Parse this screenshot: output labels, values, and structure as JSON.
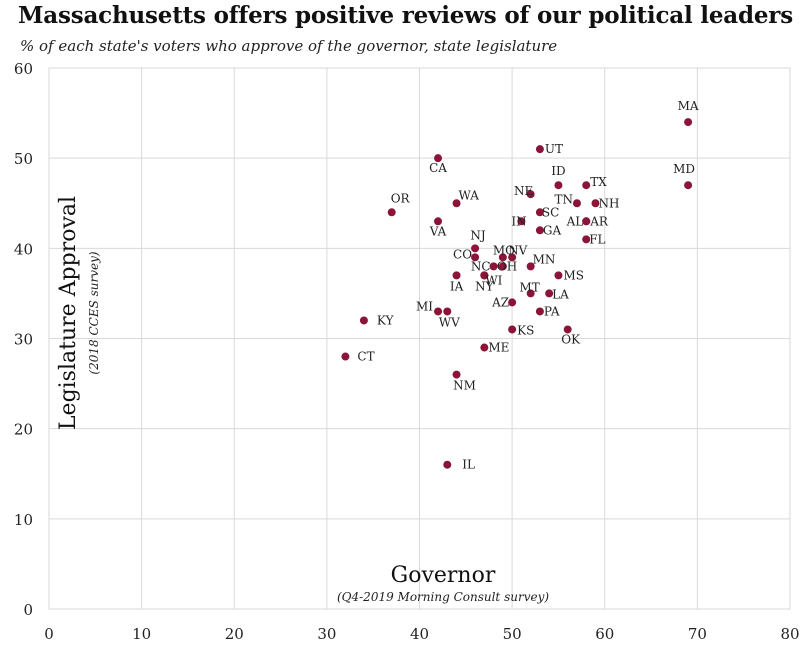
{
  "chart_data": {
    "type": "scatter",
    "title": "Massachusetts offers positive reviews of our political leaders",
    "subtitle": "% of each state's voters who approve of the governor, state legislature",
    "xlabel": "Governor",
    "xlabel_note": "(Q4-2019 Morning Consult survey)",
    "ylabel": "Legislature Approval",
    "ylabel_note": "(2018 CCES survey)",
    "xlim": [
      0,
      80
    ],
    "ylim": [
      0,
      60
    ],
    "x_ticks": [
      0,
      10,
      20,
      30,
      40,
      50,
      60,
      70,
      80
    ],
    "y_ticks": [
      0,
      10,
      20,
      30,
      40,
      50,
      60
    ],
    "grid": true,
    "marker_color": "#8b1538",
    "points": [
      {
        "label": "MA",
        "x": 69,
        "y": 54
      },
      {
        "label": "MD",
        "x": 69,
        "y": 47
      },
      {
        "label": "UT",
        "x": 53,
        "y": 51
      },
      {
        "label": "CA",
        "x": 42,
        "y": 50
      },
      {
        "label": "ID",
        "x": 55,
        "y": 47
      },
      {
        "label": "TX",
        "x": 58,
        "y": 47
      },
      {
        "label": "NE",
        "x": 52,
        "y": 46
      },
      {
        "label": "TN",
        "x": 57,
        "y": 45
      },
      {
        "label": "NH",
        "x": 59,
        "y": 45
      },
      {
        "label": "WA",
        "x": 44,
        "y": 45
      },
      {
        "label": "OR",
        "x": 37,
        "y": 44
      },
      {
        "label": "SC",
        "x": 53,
        "y": 44
      },
      {
        "label": "IN",
        "x": 51,
        "y": 43
      },
      {
        "label": "AL",
        "x": 58,
        "y": 43
      },
      {
        "label": "AR",
        "x": 58,
        "y": 43
      },
      {
        "label": "VA",
        "x": 42,
        "y": 43
      },
      {
        "label": "GA",
        "x": 53,
        "y": 42
      },
      {
        "label": "FL",
        "x": 58,
        "y": 41
      },
      {
        "label": "NJ",
        "x": 46,
        "y": 40
      },
      {
        "label": "MO",
        "x": 49,
        "y": 39
      },
      {
        "label": "NV",
        "x": 50,
        "y": 39
      },
      {
        "label": "CO",
        "x": 46,
        "y": 39
      },
      {
        "label": "MN",
        "x": 52,
        "y": 38
      },
      {
        "label": "NC",
        "x": 48,
        "y": 38
      },
      {
        "label": "OH",
        "x": 49,
        "y": 38
      },
      {
        "label": "WI",
        "x": 47,
        "y": 37
      },
      {
        "label": "IA",
        "x": 44,
        "y": 37
      },
      {
        "label": "NY",
        "x": 47,
        "y": 37
      },
      {
        "label": "MS",
        "x": 55,
        "y": 37
      },
      {
        "label": "MT",
        "x": 52,
        "y": 35
      },
      {
        "label": "LA",
        "x": 54,
        "y": 35
      },
      {
        "label": "AZ",
        "x": 50,
        "y": 34
      },
      {
        "label": "PA",
        "x": 53,
        "y": 33
      },
      {
        "label": "MI",
        "x": 42,
        "y": 33
      },
      {
        "label": "WV",
        "x": 43,
        "y": 33
      },
      {
        "label": "KY",
        "x": 34,
        "y": 32
      },
      {
        "label": "KS",
        "x": 50,
        "y": 31
      },
      {
        "label": "OK",
        "x": 56,
        "y": 31
      },
      {
        "label": "ME",
        "x": 47,
        "y": 29
      },
      {
        "label": "CT",
        "x": 32,
        "y": 28
      },
      {
        "label": "NM",
        "x": 44,
        "y": 26
      },
      {
        "label": "IL",
        "x": 43,
        "y": 16
      }
    ]
  }
}
